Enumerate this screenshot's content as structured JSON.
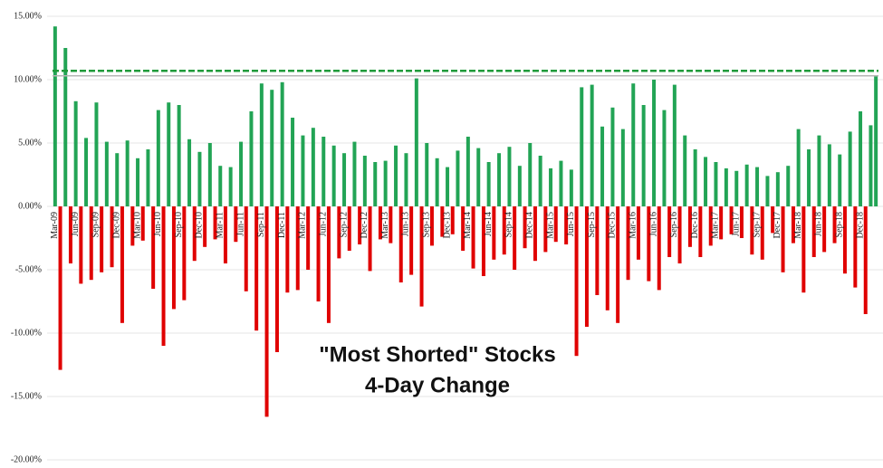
{
  "chart_data": {
    "type": "bar",
    "annotations": [
      "\"Most Shorted\" Stocks",
      "4-Day Change"
    ],
    "categories": [
      "Mar-09",
      null,
      null,
      null,
      "Jun-09",
      null,
      null,
      null,
      "Sep-09",
      null,
      null,
      null,
      "Dec-09",
      null,
      null,
      null,
      "Mar-10",
      null,
      null,
      null,
      "Jun-10",
      null,
      null,
      null,
      "Sep-10",
      null,
      null,
      null,
      "Dec-10",
      null,
      null,
      null,
      "Mar-11",
      null,
      null,
      null,
      "Jun-11",
      null,
      null,
      null,
      "Sep-11",
      null,
      null,
      null,
      "Dec-11",
      null,
      null,
      null,
      "Mar-12",
      null,
      null,
      null,
      "Jun-12",
      null,
      null,
      null,
      "Sep-12",
      null,
      null,
      null,
      "Dec-12",
      null,
      null,
      null,
      "Mar-13",
      null,
      null,
      null,
      "Jun-13",
      null,
      null,
      null,
      "Sep-13",
      null,
      null,
      null,
      "Dec-13",
      null,
      null,
      null,
      "Mar-14",
      null,
      null,
      null,
      "Jun-14",
      null,
      null,
      null,
      "Sep-14",
      null,
      null,
      null,
      "Dec-14",
      null,
      null,
      null,
      "Mar-15",
      null,
      null,
      null,
      "Jun-15",
      null,
      null,
      null,
      "Sep-15",
      null,
      null,
      null,
      "Dec-15",
      null,
      null,
      null,
      "Mar-16",
      null,
      null,
      null,
      "Jun-16",
      null,
      null,
      null,
      "Sep-16",
      null,
      null,
      null,
      "Dec-16",
      null,
      null,
      null,
      "Mar-17",
      null,
      null,
      null,
      "Jun-17",
      null,
      null,
      null,
      "Sep-17",
      null,
      null,
      null,
      "Dec-17",
      null,
      null,
      null,
      "Mar-18",
      null,
      null,
      null,
      "Jun-18",
      null,
      null,
      null,
      "Sep-18",
      null,
      null,
      null,
      "Dec-18",
      null,
      null,
      null
    ],
    "values": [
      14.2,
      -12.9,
      12.5,
      -4.5,
      8.3,
      -6.1,
      5.4,
      -5.8,
      8.2,
      -5.2,
      5.1,
      -4.8,
      4.2,
      -9.2,
      5.2,
      -3.1,
      3.8,
      -2.7,
      4.5,
      -6.5,
      7.6,
      -11.0,
      8.2,
      -8.1,
      8.0,
      -7.4,
      5.3,
      -4.3,
      4.3,
      -3.2,
      5.0,
      -2.6,
      3.2,
      -4.5,
      3.1,
      -2.8,
      5.1,
      -6.7,
      7.5,
      -9.8,
      9.7,
      -16.6,
      9.2,
      -11.5,
      9.8,
      -6.8,
      7.0,
      -6.6,
      5.6,
      -5.0,
      6.2,
      -7.5,
      5.5,
      -9.2,
      4.8,
      -4.1,
      4.2,
      -3.5,
      5.1,
      -3.0,
      4.0,
      -5.1,
      3.5,
      -2.6,
      3.6,
      -2.9,
      4.8,
      -6.0,
      4.2,
      -5.4,
      10.1,
      -7.9,
      5.0,
      -3.1,
      3.8,
      -2.4,
      3.1,
      -2.2,
      4.4,
      -3.5,
      5.5,
      -4.9,
      4.6,
      -5.5,
      3.5,
      -4.2,
      4.2,
      -3.8,
      4.7,
      -5.0,
      3.2,
      -3.3,
      5.0,
      -4.3,
      4.0,
      -3.6,
      3.0,
      -2.8,
      3.6,
      -3.0,
      2.9,
      -11.8,
      9.4,
      -9.5,
      9.6,
      -7.0,
      6.3,
      -8.2,
      7.8,
      -9.2,
      6.1,
      -5.8,
      9.7,
      -4.2,
      8.0,
      -5.9,
      10.0,
      -6.6,
      7.6,
      -4.0,
      9.6,
      -4.5,
      5.6,
      -3.2,
      4.5,
      -4.0,
      3.9,
      -3.1,
      3.5,
      -2.6,
      3.0,
      -2.2,
      2.8,
      -2.5,
      3.3,
      -3.8,
      3.1,
      -4.2,
      2.4,
      -2.1,
      2.7,
      -5.2,
      3.2,
      -2.9,
      6.1,
      -6.8,
      4.5,
      -4.0,
      5.6,
      -3.6,
      4.9,
      -2.9,
      4.1,
      -5.3,
      5.9,
      -6.4,
      7.5,
      -8.5,
      6.4,
      10.3
    ],
    "positive_color": "#22a455",
    "negative_color": "#e00000",
    "hlines": [
      {
        "value": 10.7,
        "color": "#1f9a3a",
        "dashed": true
      },
      {
        "value": 10.3,
        "color": "#b5b5b5",
        "dashed": false
      }
    ],
    "ylim": [
      -20,
      15
    ],
    "yticks": [
      {
        "value": -20,
        "label": "-20.00%"
      },
      {
        "value": -15,
        "label": "-15.00%"
      },
      {
        "value": -10,
        "label": "-10.00%"
      },
      {
        "value": -5,
        "label": "-5.00%"
      },
      {
        "value": 0,
        "label": "0.00%"
      },
      {
        "value": 5,
        "label": "5.00%"
      },
      {
        "value": 10,
        "label": "10.00%"
      },
      {
        "value": 15,
        "label": "15.00%"
      }
    ],
    "grid": true
  }
}
